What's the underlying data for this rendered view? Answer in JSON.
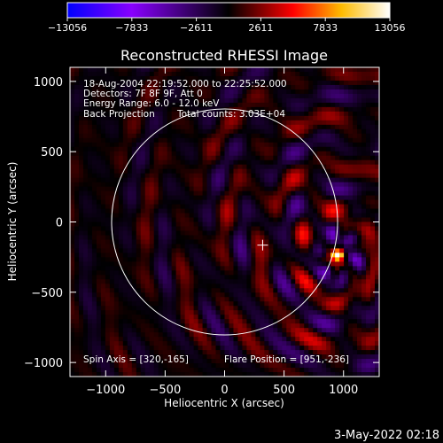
{
  "chart_data": {
    "type": "heatmap",
    "title": "Reconstructed RHESSI Image",
    "xlabel": "Heliocentric X (arcsec)",
    "ylabel": "Heliocentric Y (arcsec)",
    "xlim": [
      -1300,
      1300
    ],
    "ylim": [
      -1100,
      1100
    ],
    "xticks": [
      {
        "value": -1000,
        "label": "−1000"
      },
      {
        "value": -500,
        "label": "−500"
      },
      {
        "value": 0,
        "label": "0"
      },
      {
        "value": 500,
        "label": "500"
      },
      {
        "value": 1000,
        "label": "1000"
      }
    ],
    "yticks": [
      {
        "value": 1000,
        "label": "1000"
      },
      {
        "value": 500,
        "label": "500"
      },
      {
        "value": 0,
        "label": "0"
      },
      {
        "value": -500,
        "label": "−500"
      },
      {
        "value": -1000,
        "label": "−1000"
      }
    ],
    "colorbar": {
      "min": -13056,
      "max": 13056,
      "ticks": [
        {
          "value": -13056,
          "label": "−13056"
        },
        {
          "value": -7833,
          "label": "−7833"
        },
        {
          "value": -2611,
          "label": "−2611"
        },
        {
          "value": 2611,
          "label": "2611"
        },
        {
          "value": 7833,
          "label": "7833"
        },
        {
          "value": 13056,
          "label": "13056"
        }
      ],
      "colors": [
        "#0000ff",
        "#8800ff",
        "#000000",
        "#ff0000",
        "#ffbb00",
        "#ffffff"
      ]
    },
    "solar_disk": {
      "center": [
        0,
        0
      ],
      "radius": 950
    },
    "spin_axis": [
      320,
      -165
    ],
    "flare_position": [
      951,
      -236
    ],
    "info_lines": [
      "18-Aug-2004 22:19:52.000 to 22:25:52.000",
      "Detectors: 7F 8F 9F, Att 0",
      "Energy Range: 6.0 - 12.0 keV"
    ],
    "method": "Back Projection",
    "total_counts": "Total counts: 3.03E+04",
    "spin_axis_text": "Spin Axis = [320,-165]",
    "flare_position_text": "Flare Position = [951,-236]"
  },
  "timestamp": "3-May-2022 02:18"
}
